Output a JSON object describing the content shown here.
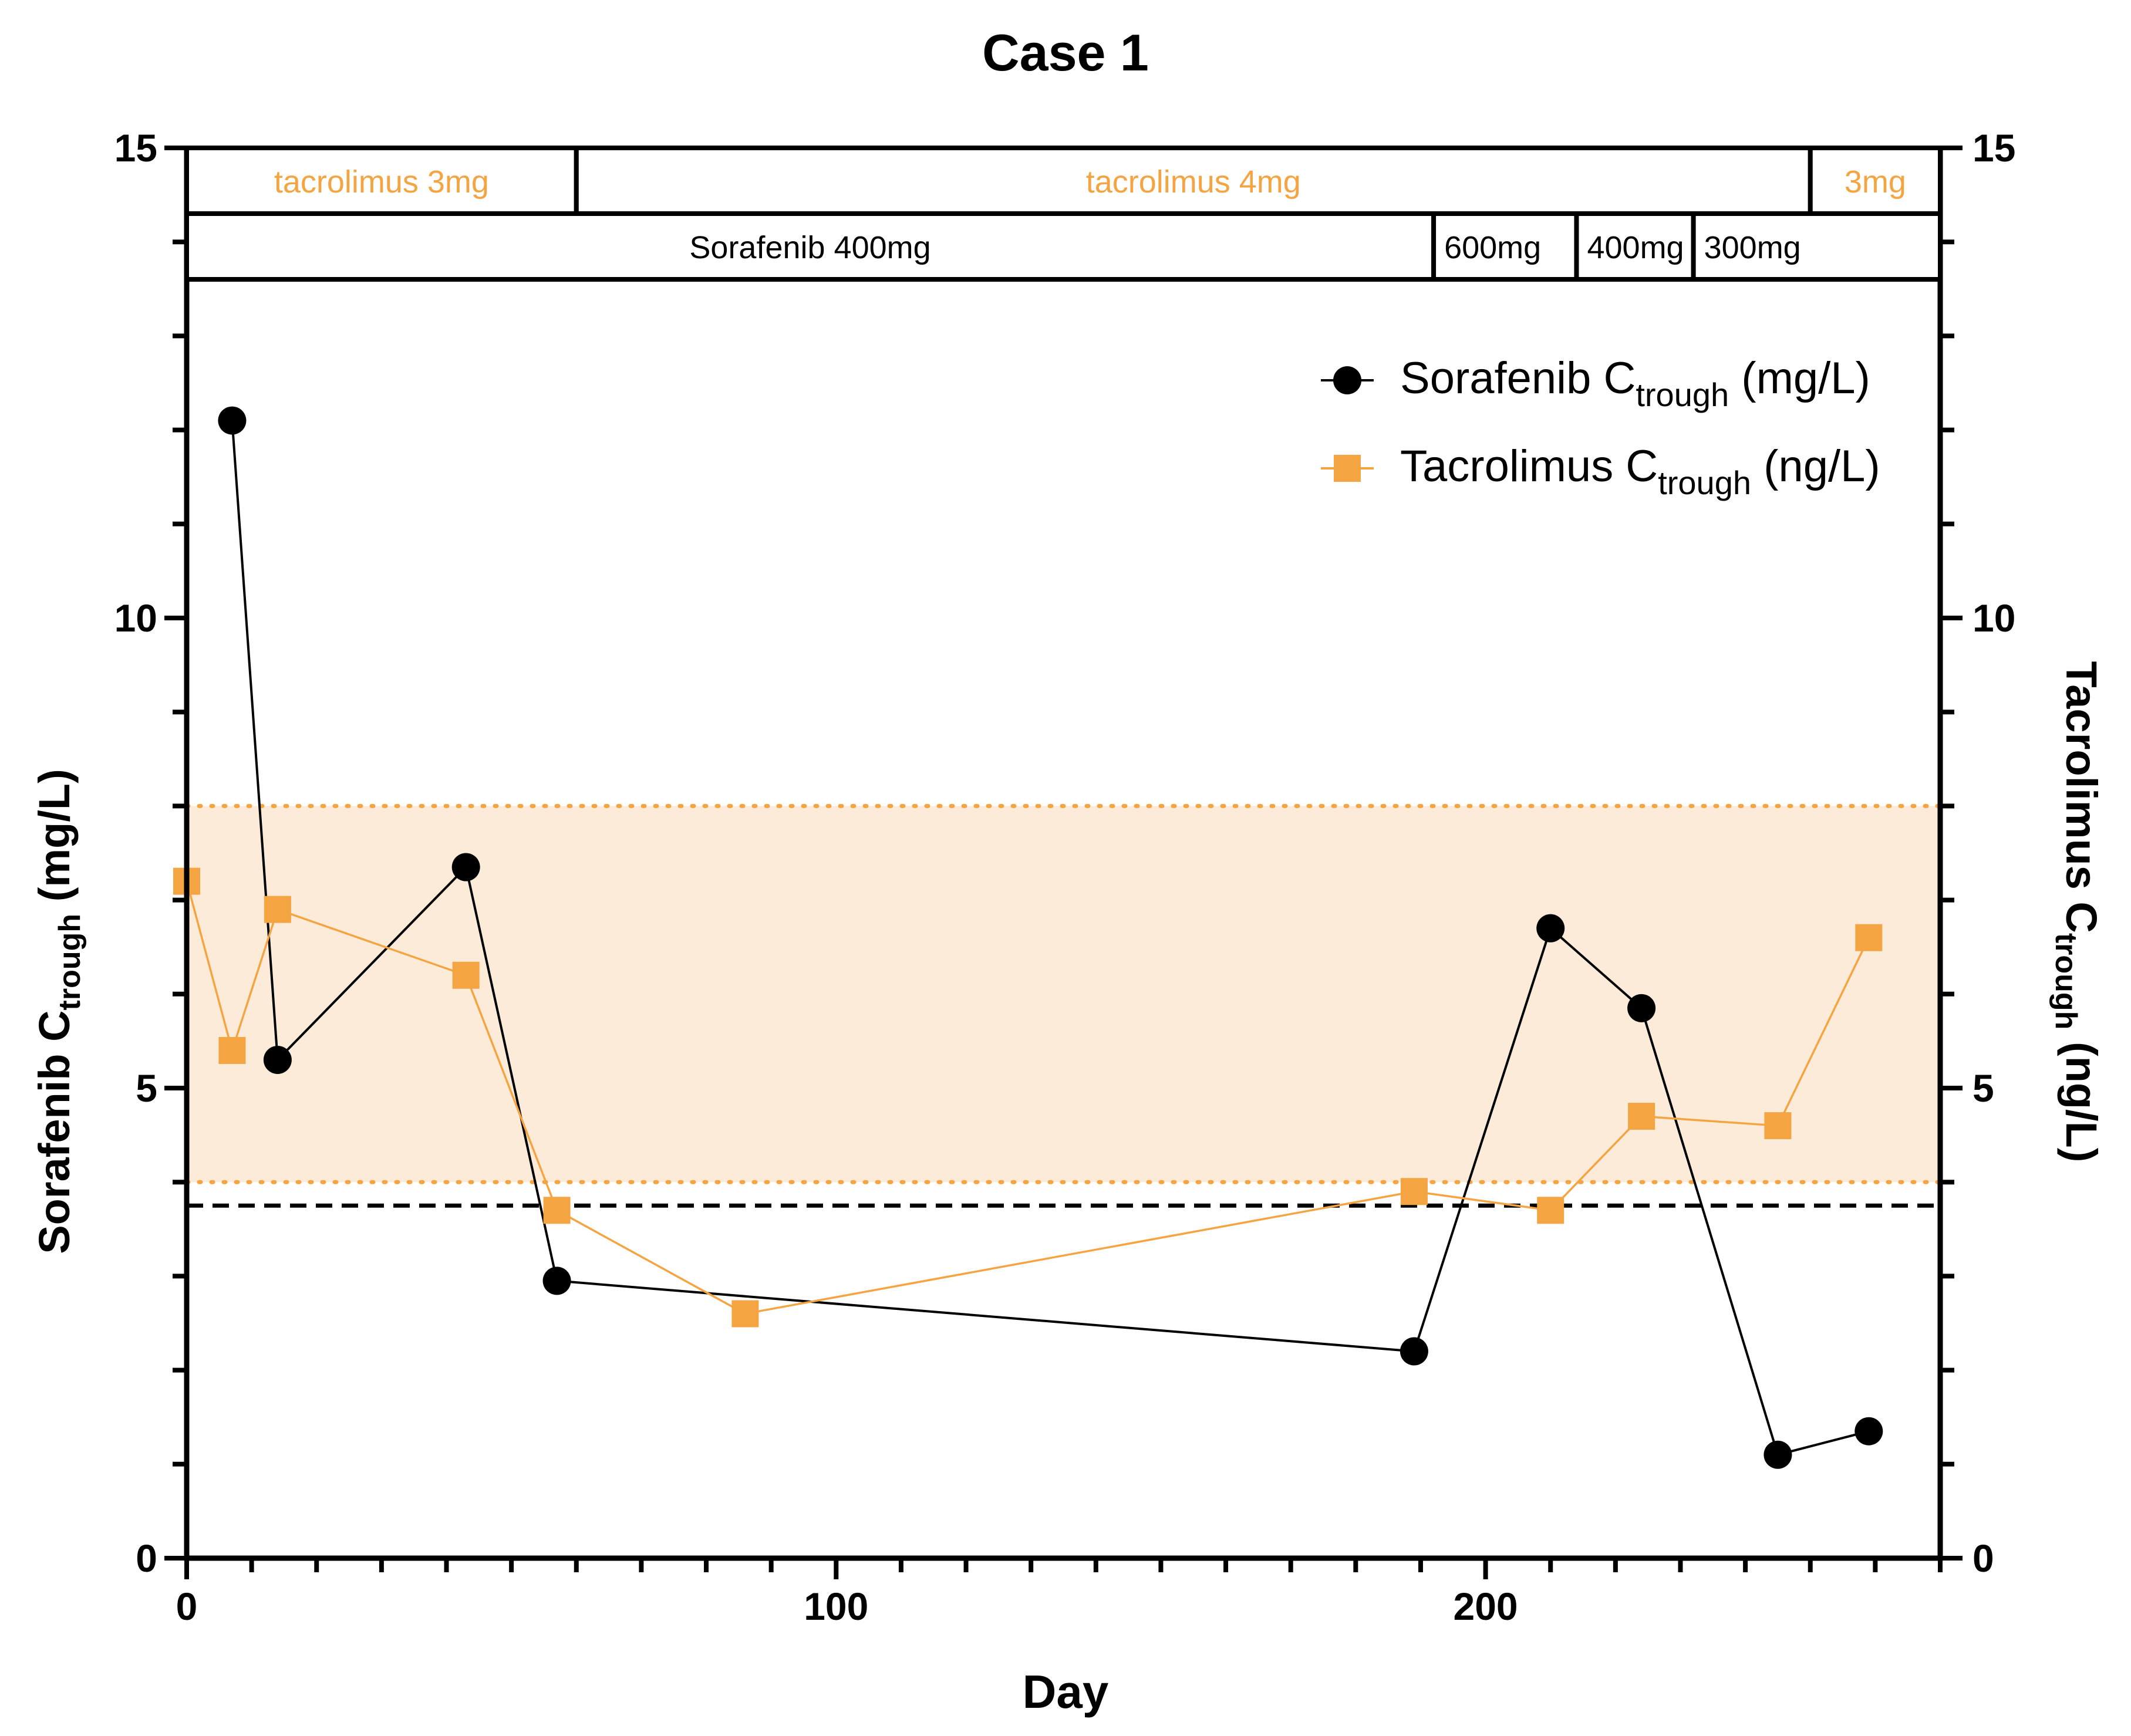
{
  "chart_data": {
    "type": "line",
    "title": "Case 1",
    "xlabel": "Day",
    "ylabel_left": {
      "main": "Sorafenib C",
      "sub": "trough",
      "tail": " (mg/L)"
    },
    "ylabel_right": {
      "main": "Tacrolimus C",
      "sub": "trough",
      "tail": " (ng/L)"
    },
    "xlim": [
      0,
      270
    ],
    "ylim_left": [
      0,
      15
    ],
    "ylim_right": [
      0,
      15
    ],
    "x_ticks": [
      0,
      100,
      200
    ],
    "x_tick_labels": [
      "0",
      "100",
      "200"
    ],
    "y_ticks_left": [
      0,
      5,
      10,
      15
    ],
    "y_tick_labels_left": [
      "0",
      "5",
      "10",
      "15"
    ],
    "y_ticks_right": [
      0,
      5,
      10,
      15
    ],
    "y_tick_labels_right": [
      "0",
      "5",
      "10",
      "15"
    ],
    "legend_position": "top-right",
    "reference_band": {
      "low": 4.0,
      "high": 8.0,
      "color": "#fdebd9",
      "line_color": "#f5a442"
    },
    "reference_line": {
      "y": 3.75,
      "style": "dashed",
      "color": "#000000"
    },
    "series": [
      {
        "name": "Sorafenib",
        "legend": {
          "main": "Sorafenib C",
          "sub": "trough",
          "tail": " (mg/L)"
        },
        "marker": "circle",
        "color": "#000000",
        "x": [
          7,
          14,
          43,
          57,
          189,
          210,
          224,
          245,
          259
        ],
        "y": [
          12.1,
          5.3,
          7.35,
          2.95,
          2.2,
          6.7,
          5.85,
          1.1,
          1.35
        ]
      },
      {
        "name": "Tacrolimus",
        "legend": {
          "main": "Tacrolimus C",
          "sub": "trough",
          "tail": " (ng/L)"
        },
        "marker": "square",
        "color": "#f5a442",
        "x": [
          0,
          7,
          14,
          43,
          57,
          86,
          189,
          210,
          224,
          245,
          259
        ],
        "y": [
          7.2,
          5.4,
          6.9,
          6.2,
          3.7,
          2.6,
          3.9,
          3.7,
          4.7,
          4.6,
          6.6
        ]
      }
    ],
    "dose_bands": [
      {
        "color": "#f5a442",
        "segments": [
          {
            "label": "tacrolimus 3mg",
            "start": 0,
            "end": 60,
            "label_align": "center"
          },
          {
            "label": "tacrolimus 4mg",
            "start": 60,
            "end": 250,
            "label_align": "center"
          },
          {
            "label": "3mg",
            "start": 250,
            "end": 270,
            "label_align": "center"
          }
        ]
      },
      {
        "color": "#000000",
        "segments": [
          {
            "label": "Sorafenib 400mg",
            "start": 0,
            "end": 192,
            "label_align": "center"
          },
          {
            "label": "600mg",
            "start": 192,
            "end": 214,
            "label_align": "left"
          },
          {
            "label": "400mg",
            "start": 214,
            "end": 232,
            "label_align": "left"
          },
          {
            "label": "300mg",
            "start": 232,
            "end": 270,
            "label_align": "left"
          }
        ]
      }
    ]
  }
}
